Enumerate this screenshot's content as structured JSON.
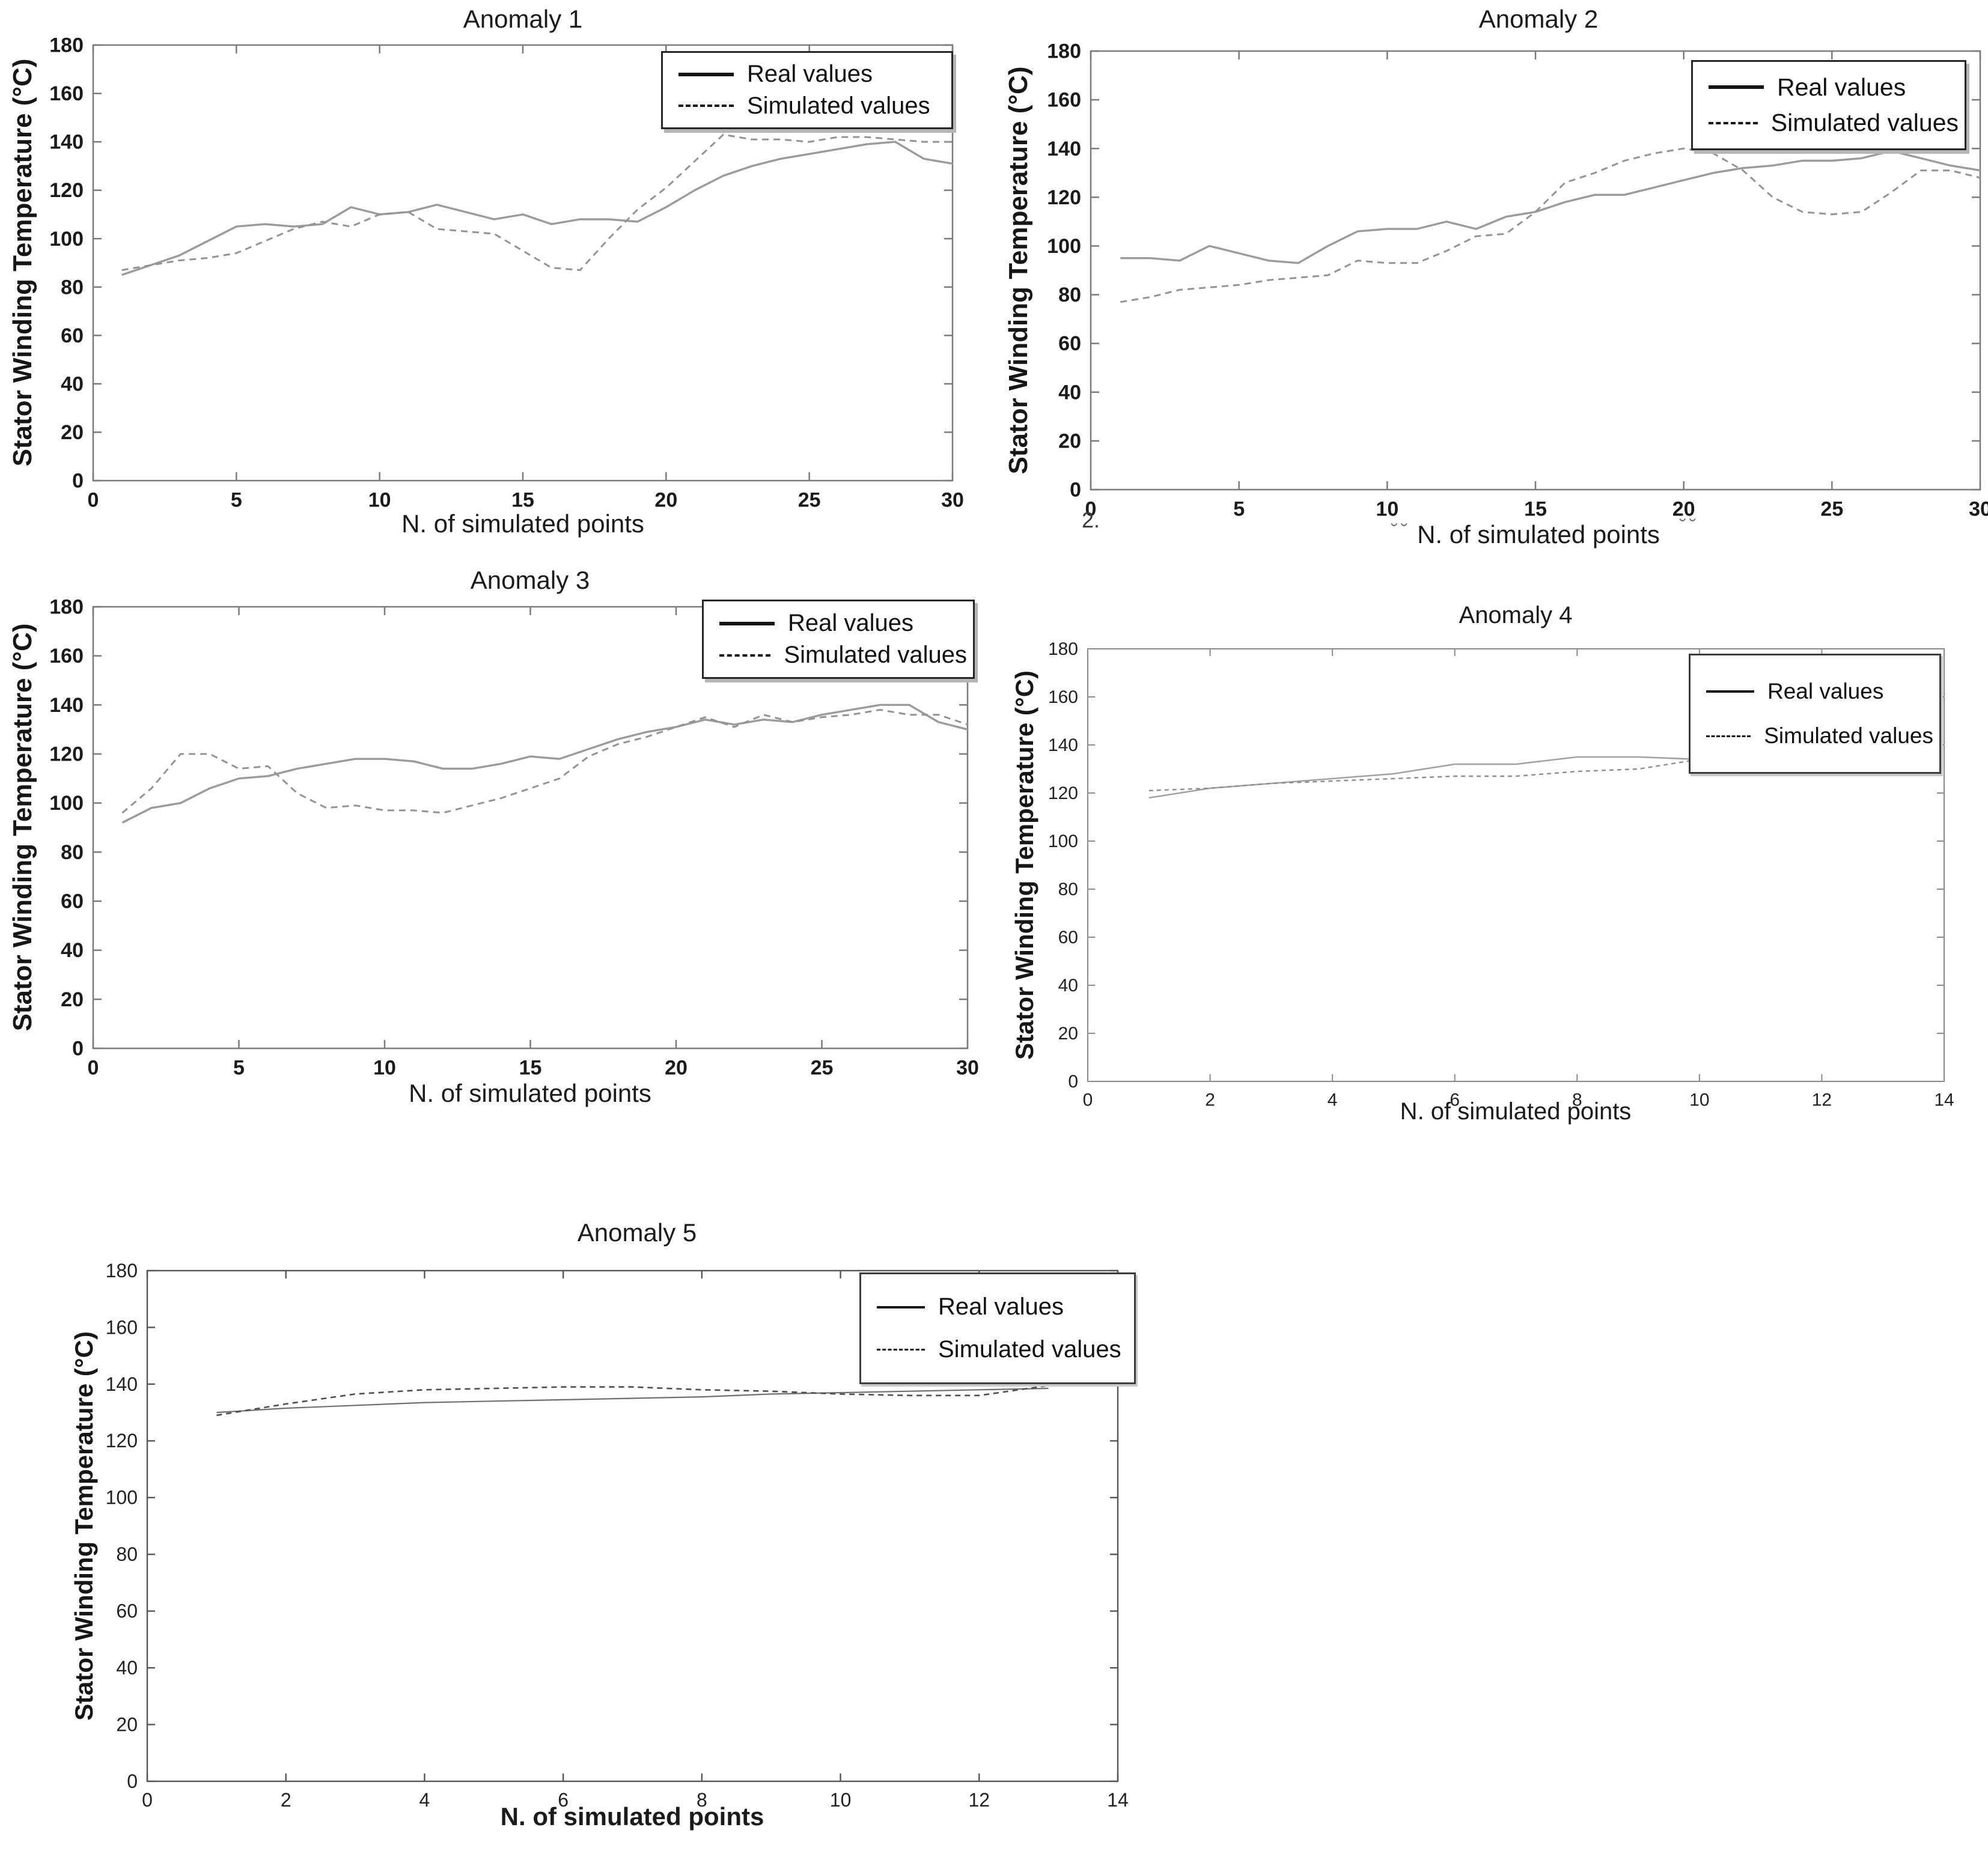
{
  "page": {
    "background": "#ffffff"
  },
  "colors": {
    "real_line": "#9b9b9b",
    "simulated_line": "#949494",
    "legend_swatch": "#141414",
    "axis_border": "#7b7b7b",
    "text": "#1b1b1b"
  },
  "chart_data": [
    {
      "type": "line",
      "title": "Anomaly 1",
      "xlabel": "N. of simulated points",
      "ylabel": "Stator Winding Temperature (°C)",
      "xlim": [
        0,
        30
      ],
      "ylim": [
        0,
        180
      ],
      "xticks": [
        0,
        5,
        10,
        15,
        20,
        25,
        30
      ],
      "yticks": [
        0,
        20,
        40,
        60,
        80,
        100,
        120,
        140,
        160,
        180
      ],
      "grid": false,
      "legend_position": "top-right",
      "x": [
        1,
        2,
        3,
        4,
        5,
        6,
        7,
        8,
        9,
        10,
        11,
        12,
        13,
        14,
        15,
        16,
        17,
        18,
        19,
        20,
        21,
        22,
        23,
        24,
        25,
        26,
        27,
        28,
        29,
        30
      ],
      "series": [
        {
          "name": "Real values",
          "style": "solid",
          "values": [
            85,
            89,
            93,
            99,
            105,
            106,
            105,
            106,
            113,
            110,
            111,
            114,
            111,
            108,
            110,
            106,
            108,
            108,
            107,
            113,
            120,
            126,
            130,
            133,
            135,
            137,
            139,
            140,
            133,
            131
          ]
        },
        {
          "name": "Simulated values",
          "style": "dashed",
          "values": [
            87,
            89,
            91,
            92,
            94,
            99,
            104,
            107,
            105,
            110,
            111,
            104,
            103,
            102,
            95,
            88,
            87,
            100,
            112,
            121,
            132,
            143,
            141,
            141,
            140,
            142,
            142,
            141,
            140,
            140
          ]
        }
      ]
    },
    {
      "type": "line",
      "title": "Anomaly 2",
      "xlabel": "N. of simulated points",
      "ylabel": "Stator Winding Temperature (°C)",
      "xlim": [
        0,
        30
      ],
      "ylim": [
        0,
        180
      ],
      "xticks": [
        0,
        5,
        10,
        15,
        20,
        25,
        30
      ],
      "yticks": [
        0,
        20,
        40,
        60,
        80,
        100,
        120,
        140,
        160,
        180
      ],
      "grid": false,
      "legend_position": "top-right",
      "x": [
        1,
        2,
        3,
        4,
        5,
        6,
        7,
        8,
        9,
        10,
        11,
        12,
        13,
        14,
        15,
        16,
        17,
        18,
        19,
        20,
        21,
        22,
        23,
        24,
        25,
        26,
        27,
        28,
        29,
        30
      ],
      "series": [
        {
          "name": "Real values",
          "style": "solid",
          "values": [
            95,
            95,
            94,
            100,
            97,
            94,
            93,
            100,
            106,
            107,
            107,
            110,
            107,
            112,
            114,
            118,
            121,
            121,
            124,
            127,
            130,
            132,
            133,
            135,
            135,
            136,
            139,
            136,
            133,
            131
          ]
        },
        {
          "name": "Simulated values",
          "style": "dashed",
          "values": [
            77,
            79,
            82,
            83,
            84,
            86,
            87,
            88,
            94,
            93,
            93,
            98,
            104,
            105,
            114,
            126,
            130,
            135,
            138,
            140,
            138,
            131,
            120,
            114,
            113,
            114,
            122,
            131,
            131,
            128
          ]
        }
      ],
      "artifacts": [
        {
          "text": "2."
        },
        {
          "text": "˘˘"
        },
        {
          "text": "˘˘"
        }
      ]
    },
    {
      "type": "line",
      "title": "Anomaly 3",
      "xlabel": "N. of simulated points",
      "ylabel": "Stator Winding Temperature (°C)",
      "xlim": [
        0,
        30
      ],
      "ylim": [
        0,
        180
      ],
      "xticks": [
        0,
        5,
        10,
        15,
        20,
        25,
        30
      ],
      "yticks": [
        0,
        20,
        40,
        60,
        80,
        100,
        120,
        140,
        160,
        180
      ],
      "grid": false,
      "legend_position": "top-right",
      "x": [
        1,
        2,
        3,
        4,
        5,
        6,
        7,
        8,
        9,
        10,
        11,
        12,
        13,
        14,
        15,
        16,
        17,
        18,
        19,
        20,
        21,
        22,
        23,
        24,
        25,
        26,
        27,
        28,
        29,
        30
      ],
      "series": [
        {
          "name": "Real values",
          "style": "solid",
          "values": [
            92,
            98,
            100,
            106,
            110,
            111,
            114,
            116,
            118,
            118,
            117,
            114,
            114,
            116,
            119,
            118,
            122,
            126,
            129,
            131,
            134,
            132,
            134,
            133,
            136,
            138,
            140,
            140,
            133,
            130
          ]
        },
        {
          "name": "Simulated values",
          "style": "dashed",
          "values": [
            96,
            106,
            120,
            120,
            114,
            115,
            104,
            98,
            99,
            97,
            97,
            96,
            99,
            102,
            106,
            110,
            119,
            124,
            127,
            131,
            135,
            131,
            136,
            133,
            135,
            136,
            138,
            136,
            136,
            132
          ]
        }
      ]
    },
    {
      "type": "line",
      "title": "Anomaly 4",
      "xlabel": "N. of simulated points",
      "ylabel": "Stator Winding Temperature (°C)",
      "xlim": [
        0,
        14
      ],
      "ylim": [
        0,
        180
      ],
      "xticks": [
        0,
        2,
        4,
        6,
        8,
        10,
        12,
        14
      ],
      "yticks": [
        0,
        20,
        40,
        60,
        80,
        100,
        120,
        140,
        160,
        180
      ],
      "grid": false,
      "legend_position": "top-right",
      "x": [
        1,
        2,
        3,
        4,
        5,
        6,
        7,
        8,
        9,
        10,
        11,
        12,
        13
      ],
      "series": [
        {
          "name": "Real values",
          "style": "solid",
          "values": [
            118,
            122,
            124,
            126,
            128,
            132,
            132,
            135,
            135,
            134,
            135,
            137,
            139
          ]
        },
        {
          "name": "Simulated values",
          "style": "dashed",
          "values": [
            121,
            122,
            124,
            125,
            126,
            127,
            127,
            129,
            130,
            134,
            136,
            136,
            137
          ]
        }
      ]
    },
    {
      "type": "line",
      "title": "Anomaly 5",
      "xlabel": "N. of simulated points",
      "ylabel": "Stator Winding Temperature (°C)",
      "xlim": [
        0,
        14
      ],
      "ylim": [
        0,
        180
      ],
      "xticks": [
        0,
        2,
        4,
        6,
        8,
        10,
        12,
        14
      ],
      "yticks": [
        0,
        20,
        40,
        60,
        80,
        100,
        120,
        140,
        160,
        180
      ],
      "grid": false,
      "legend_position": "top-right",
      "x": [
        1,
        2,
        3,
        4,
        5,
        6,
        7,
        8,
        9,
        10,
        11,
        12,
        13
      ],
      "series": [
        {
          "name": "Real values",
          "style": "solid",
          "values": [
            130,
            131.5,
            132.5,
            133.5,
            134,
            134.5,
            135,
            135.5,
            136.5,
            137,
            137.5,
            138,
            138.5
          ]
        },
        {
          "name": "Simulated values",
          "style": "dashed",
          "values": [
            129,
            133,
            136.5,
            138,
            138.5,
            139,
            139,
            138,
            137.5,
            136.5,
            136,
            136,
            139.5
          ]
        }
      ]
    }
  ]
}
